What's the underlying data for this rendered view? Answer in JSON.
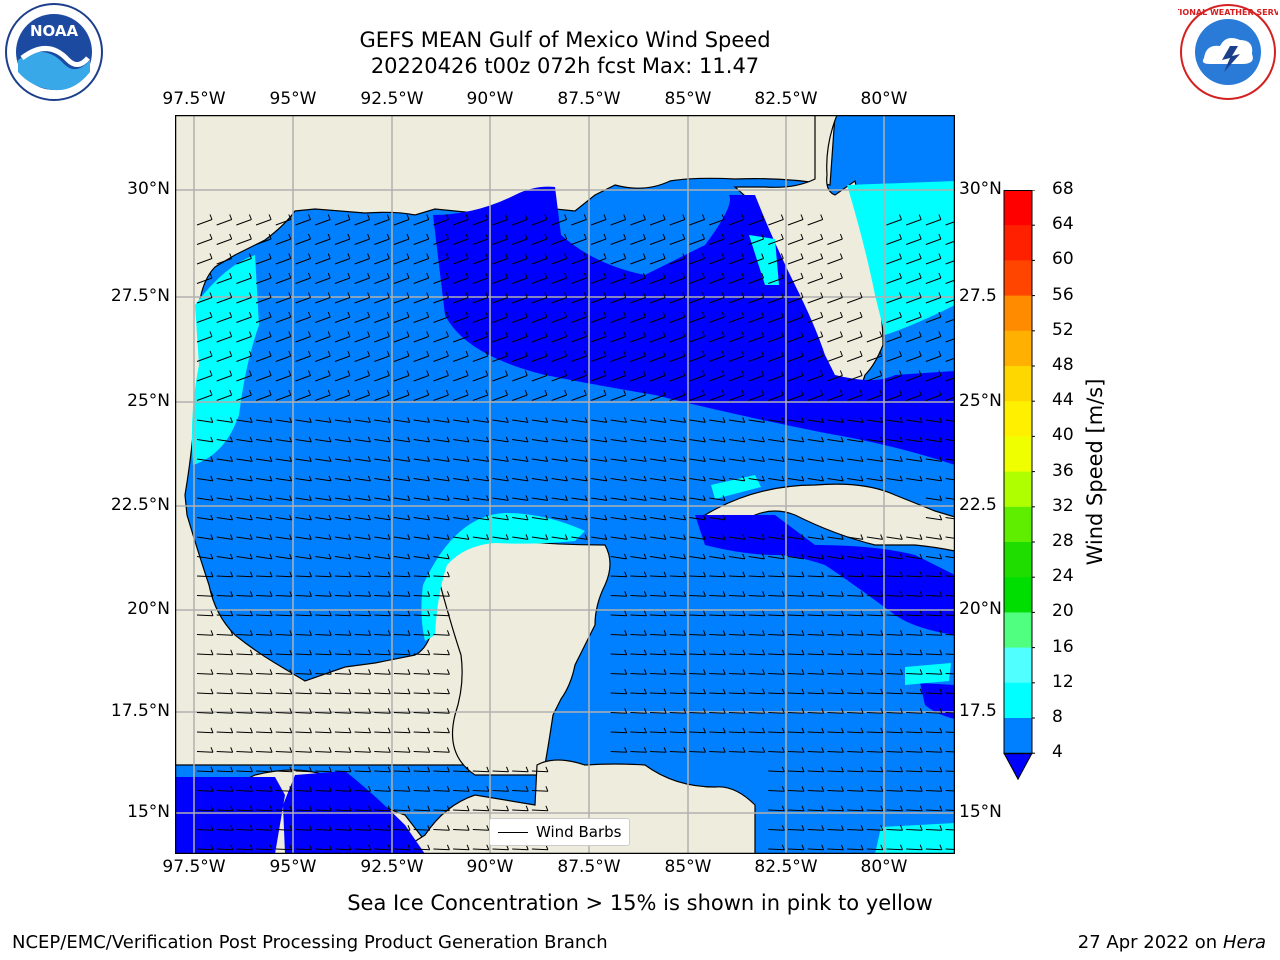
{
  "title": {
    "line1": "GEFS MEAN Gulf of Mexico Wind Speed",
    "line2": "20220426 t00z 072h fcst   Max: 11.47"
  },
  "logos": {
    "noaa_text": "NOAA",
    "nws_text": "NATIONAL WEATHER SERVICE"
  },
  "map": {
    "lon_labels_top": [
      "97.5°W",
      "95°W",
      "92.5°W",
      "90°W",
      "87.5°W",
      "85°W",
      "82.5°W",
      "80°W"
    ],
    "lon_labels_bottom": [
      "97.5°W",
      "95°W",
      "92.5°W",
      "90°W",
      "87.5°W",
      "85°W",
      "82.5°W",
      "80°W"
    ],
    "lat_labels_left": [
      "30°N",
      "27.5°N",
      "25°N",
      "22.5°N",
      "20°N",
      "17.5°N",
      "15°N"
    ],
    "lat_labels_right": [
      "30°N",
      "27.5",
      "25°N",
      "22.5",
      "20°N",
      "17.5",
      "15°N"
    ],
    "legend_label": "Wind Barbs",
    "colors": {
      "land": "#eeecdc",
      "ws_4_8": "#0080ff",
      "ws_lt_4": "#0000ff",
      "ws_8_12": "#00ffff",
      "grid": "#b0b0b0"
    }
  },
  "colorbar": {
    "label": "Wind Speed [m/s]",
    "ticks": [
      "68",
      "64",
      "60",
      "56",
      "52",
      "48",
      "44",
      "40",
      "36",
      "32",
      "28",
      "24",
      "20",
      "16",
      "12",
      "8",
      "4"
    ],
    "colors": [
      "#ff0000",
      "#ff2000",
      "#ff4500",
      "#ff6a00",
      "#ff8c00",
      "#ffb000",
      "#ffd700",
      "#fff000",
      "#f0ff00",
      "#d4ff00",
      "#b0ff00",
      "#60ee00",
      "#20dd00",
      "#00dd00",
      "#50ff80",
      "#a0ffe0",
      "#50ffff",
      "#00ffff",
      "#0080ff"
    ],
    "extend_color": "#0000ff"
  },
  "sea_ice_note": "Sea Ice Concentration > 15% is shown in pink to yellow",
  "footer": {
    "left": "NCEP/EMC/Verification Post Processing Product Generation Branch",
    "right_prefix": "27 Apr 2022 on ",
    "right_italic": "Hera"
  }
}
